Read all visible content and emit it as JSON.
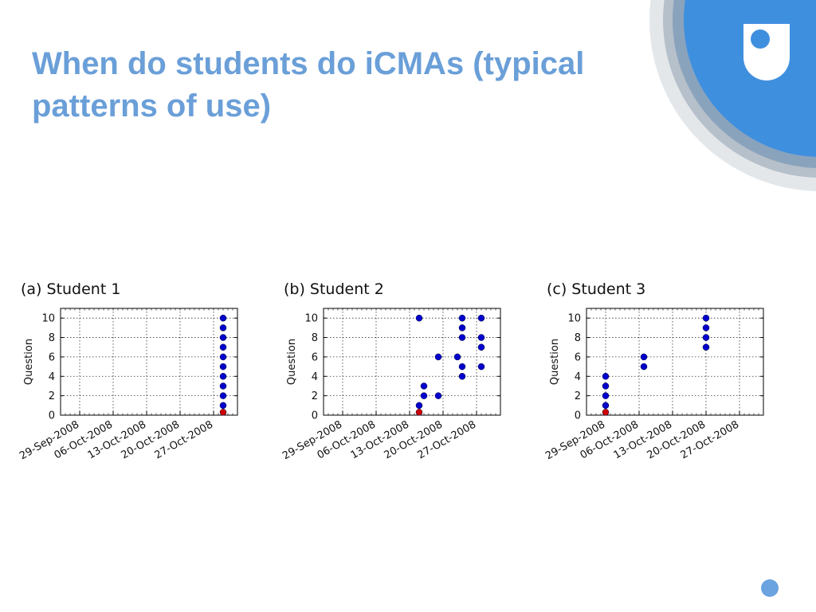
{
  "slide": {
    "title": "When do students do iCMAs (typical patterns of use)"
  },
  "logo": {
    "name": "open-university-logo"
  },
  "colors": {
    "title": "#6a9fd8",
    "accent_blue": "#3f8fdf",
    "point_blue": "#0000cc",
    "point_red": "#cc0000"
  },
  "chart_data": [
    {
      "type": "scatter",
      "title": "(a) Student 1",
      "xlabel": "",
      "ylabel": "Question",
      "x_range": [
        "2008-09-25",
        "2008-11-01"
      ],
      "ylim": [
        0,
        11
      ],
      "x_ticks": [
        "29-Sep-2008",
        "06-Oct-2008",
        "13-Oct-2008",
        "20-Oct-2008",
        "27-Oct-2008"
      ],
      "y_ticks": [
        0,
        2,
        4,
        6,
        8,
        10
      ],
      "grid": true,
      "series": [
        {
          "color": "#0000cc",
          "points": [
            {
              "x": "2008-10-29",
              "y": 1
            },
            {
              "x": "2008-10-29",
              "y": 2
            },
            {
              "x": "2008-10-29",
              "y": 3
            },
            {
              "x": "2008-10-29",
              "y": 4
            },
            {
              "x": "2008-10-29",
              "y": 5
            },
            {
              "x": "2008-10-29",
              "y": 6
            },
            {
              "x": "2008-10-29",
              "y": 7
            },
            {
              "x": "2008-10-29",
              "y": 8
            },
            {
              "x": "2008-10-29",
              "y": 9
            },
            {
              "x": "2008-10-29",
              "y": 10
            }
          ]
        },
        {
          "color": "#cc0000",
          "points": [
            {
              "x": "2008-10-29",
              "y": 0.3
            }
          ]
        }
      ]
    },
    {
      "type": "scatter",
      "title": "(b) Student 2",
      "xlabel": "",
      "ylabel": "Question",
      "x_range": [
        "2008-09-25",
        "2008-11-01"
      ],
      "ylim": [
        0,
        11
      ],
      "x_ticks": [
        "29-Sep-2008",
        "06-Oct-2008",
        "13-Oct-2008",
        "20-Oct-2008",
        "27-Oct-2008"
      ],
      "y_ticks": [
        0,
        2,
        4,
        6,
        8,
        10
      ],
      "grid": true,
      "series": [
        {
          "color": "#0000cc",
          "points": [
            {
              "x": "2008-10-15",
              "y": 1
            },
            {
              "x": "2008-10-15",
              "y": 10
            },
            {
              "x": "2008-10-16",
              "y": 2
            },
            {
              "x": "2008-10-16",
              "y": 3
            },
            {
              "x": "2008-10-19",
              "y": 2
            },
            {
              "x": "2008-10-19",
              "y": 6
            },
            {
              "x": "2008-10-23",
              "y": 6
            },
            {
              "x": "2008-10-24",
              "y": 4
            },
            {
              "x": "2008-10-24",
              "y": 5
            },
            {
              "x": "2008-10-24",
              "y": 8
            },
            {
              "x": "2008-10-24",
              "y": 9
            },
            {
              "x": "2008-10-24",
              "y": 10
            },
            {
              "x": "2008-10-28",
              "y": 5
            },
            {
              "x": "2008-10-28",
              "y": 7
            },
            {
              "x": "2008-10-28",
              "y": 8
            },
            {
              "x": "2008-10-28",
              "y": 10
            }
          ]
        },
        {
          "color": "#cc0000",
          "points": [
            {
              "x": "2008-10-15",
              "y": 0.3
            }
          ]
        }
      ]
    },
    {
      "type": "scatter",
      "title": "(c) Student 3",
      "xlabel": "",
      "ylabel": "Question",
      "x_range": [
        "2008-09-25",
        "2008-11-01"
      ],
      "ylim": [
        0,
        11
      ],
      "x_ticks": [
        "29-Sep-2008",
        "06-Oct-2008",
        "13-Oct-2008",
        "20-Oct-2008",
        "27-Oct-2008"
      ],
      "y_ticks": [
        0,
        2,
        4,
        6,
        8,
        10
      ],
      "grid": true,
      "series": [
        {
          "color": "#0000cc",
          "points": [
            {
              "x": "2008-09-29",
              "y": 1
            },
            {
              "x": "2008-09-29",
              "y": 2
            },
            {
              "x": "2008-09-29",
              "y": 3
            },
            {
              "x": "2008-09-29",
              "y": 4
            },
            {
              "x": "2008-10-07",
              "y": 5
            },
            {
              "x": "2008-10-07",
              "y": 6
            },
            {
              "x": "2008-10-20",
              "y": 7
            },
            {
              "x": "2008-10-20",
              "y": 8
            },
            {
              "x": "2008-10-20",
              "y": 9
            },
            {
              "x": "2008-10-20",
              "y": 10
            }
          ]
        },
        {
          "color": "#cc0000",
          "points": [
            {
              "x": "2008-09-29",
              "y": 0.3
            }
          ]
        }
      ]
    }
  ]
}
